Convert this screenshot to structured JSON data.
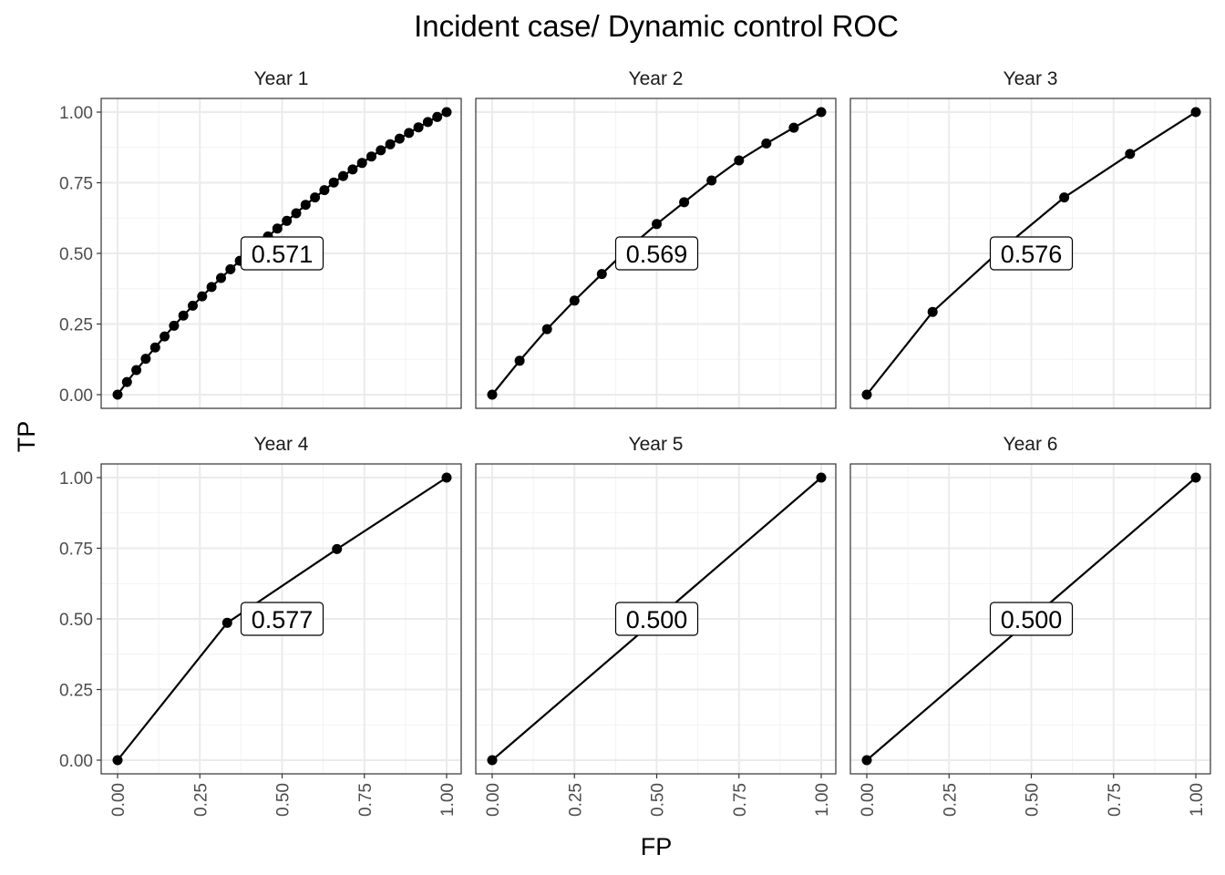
{
  "chart_data": {
    "type": "line",
    "title": "Incident case/ Dynamic control ROC",
    "xlabel": "FP",
    "ylabel": "TP",
    "xlim": [
      0,
      1
    ],
    "ylim": [
      0,
      1
    ],
    "ticks": [
      "0.00",
      "0.25",
      "0.50",
      "0.75",
      "1.00"
    ],
    "tick_values": [
      0,
      0.25,
      0.5,
      0.75,
      1
    ],
    "grid": true,
    "panels": [
      {
        "label": "Year 1",
        "auc": "0.571",
        "x": [
          0,
          0.0286,
          0.0571,
          0.0857,
          0.1143,
          0.1429,
          0.1714,
          0.2,
          0.2286,
          0.2571,
          0.2857,
          0.3143,
          0.3429,
          0.3714,
          0.4,
          0.4286,
          0.4571,
          0.4857,
          0.5143,
          0.5429,
          0.5714,
          0.6,
          0.6286,
          0.6571,
          0.6857,
          0.7143,
          0.7429,
          0.7714,
          0.8,
          0.8286,
          0.8571,
          0.8857,
          0.9143,
          0.9429,
          0.9714,
          1
        ],
        "y": [
          0,
          0.045,
          0.087,
          0.127,
          0.167,
          0.206,
          0.244,
          0.28,
          0.315,
          0.348,
          0.381,
          0.413,
          0.444,
          0.474,
          0.504,
          0.532,
          0.56,
          0.588,
          0.615,
          0.642,
          0.672,
          0.698,
          0.724,
          0.751,
          0.774,
          0.797,
          0.82,
          0.843,
          0.865,
          0.886,
          0.906,
          0.926,
          0.946,
          0.965,
          0.983,
          1
        ]
      },
      {
        "label": "Year 2",
        "auc": "0.569",
        "x": [
          0,
          0.0833,
          0.1667,
          0.25,
          0.3333,
          0.4167,
          0.5,
          0.5833,
          0.6667,
          0.75,
          0.8333,
          0.9167,
          1
        ],
        "y": [
          0,
          0.12,
          0.232,
          0.333,
          0.427,
          0.52,
          0.604,
          0.681,
          0.758,
          0.829,
          0.889,
          0.945,
          1
        ]
      },
      {
        "label": "Year 3",
        "auc": "0.576",
        "x": [
          0,
          0.2,
          0.4,
          0.6,
          0.8,
          1
        ],
        "y": [
          0,
          0.293,
          0.505,
          0.698,
          0.852,
          1
        ]
      },
      {
        "label": "Year 4",
        "auc": "0.577",
        "x": [
          0,
          0.3333,
          0.6667,
          1
        ],
        "y": [
          0,
          0.486,
          0.747,
          1
        ]
      },
      {
        "label": "Year 5",
        "auc": "0.500",
        "x": [
          0,
          1
        ],
        "y": [
          0,
          1
        ]
      },
      {
        "label": "Year 6",
        "auc": "0.500",
        "x": [
          0,
          1
        ],
        "y": [
          0,
          1
        ]
      }
    ]
  }
}
